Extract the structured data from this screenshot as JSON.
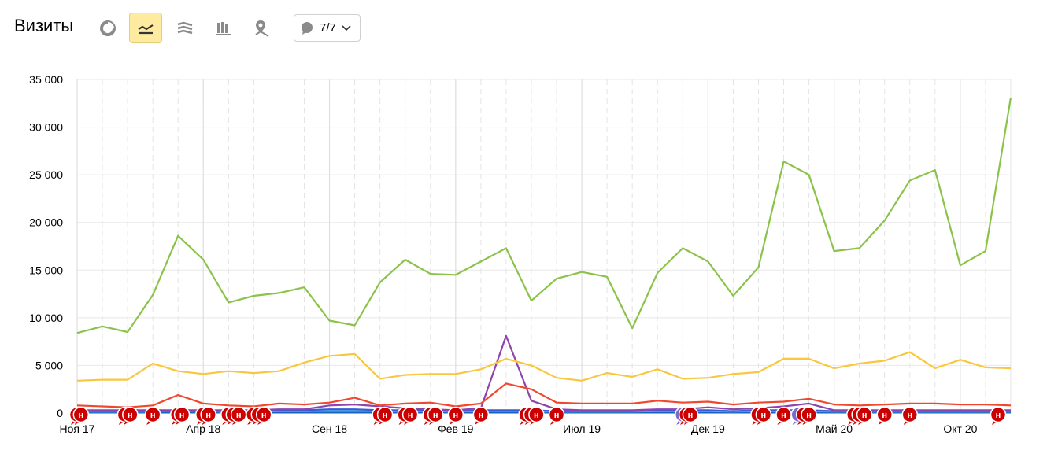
{
  "header": {
    "title": "Визиты",
    "segments_count": "7/7",
    "toolbar_icons": [
      "pie-chart-icon",
      "line-chart-icon",
      "stacked-area-icon",
      "column-chart-icon",
      "map-pin-icon",
      "comment-icon"
    ],
    "active_icon": "line-chart-icon",
    "active_color": "#ffeba0"
  },
  "chart_data": {
    "type": "line",
    "x_tick_labels": [
      "Ноя 17",
      "Апр 18",
      "Сен 18",
      "Фев 19",
      "Июл 19",
      "Дек 19",
      "Май 20",
      "Окт 20"
    ],
    "y_tick_labels": [
      "0",
      "5 000",
      "10 000",
      "15 000",
      "20 000",
      "25 000",
      "30 000",
      "35 000"
    ],
    "ylim": [
      0,
      35000
    ],
    "grid": true,
    "periods": 38,
    "series": [
      {
        "color": "#8bc34a",
        "values": [
          8400,
          9100,
          8500,
          12400,
          18600,
          16100,
          11600,
          12300,
          12600,
          13200,
          9700,
          9200,
          13700,
          16100,
          14600,
          14500,
          15900,
          17300,
          11800,
          14100,
          14800,
          14300,
          8900,
          14700,
          17300,
          15900,
          12300,
          15300,
          26400,
          25000,
          17000,
          17300,
          20200,
          24400,
          25500,
          15500,
          17000,
          33100
        ]
      },
      {
        "color": "#f8c63f",
        "values": [
          3400,
          3500,
          3500,
          5200,
          4400,
          4100,
          4400,
          4200,
          4400,
          5300,
          6000,
          6200,
          3600,
          4000,
          4100,
          4100,
          4600,
          5700,
          5000,
          3700,
          3400,
          4200,
          3800,
          4600,
          3600,
          3700,
          4100,
          4300,
          5700,
          5700,
          4700,
          5200,
          5500,
          6400,
          4700,
          5600,
          4800,
          4700
        ]
      },
      {
        "color": "#f0482f",
        "values": [
          800,
          700,
          600,
          800,
          1900,
          1000,
          800,
          700,
          1000,
          900,
          1100,
          1600,
          800,
          1000,
          1100,
          700,
          1000,
          3100,
          2500,
          1100,
          1000,
          1000,
          1000,
          1300,
          1100,
          1200,
          900,
          1100,
          1200,
          1500,
          900,
          800,
          900,
          1000,
          1000,
          900,
          900,
          800
        ]
      },
      {
        "color": "#8e44ad",
        "values": [
          300,
          300,
          300,
          300,
          300,
          300,
          300,
          300,
          400,
          400,
          800,
          900,
          700,
          500,
          400,
          300,
          500,
          8100,
          1300,
          400,
          300,
          300,
          300,
          400,
          400,
          600,
          400,
          500,
          700,
          1000,
          300,
          300,
          300,
          300,
          300,
          300,
          300,
          300
        ]
      },
      {
        "color": "#3b5bd6",
        "values": [
          200,
          200,
          200,
          200,
          200,
          200,
          200,
          200,
          300,
          300,
          400,
          400,
          300,
          300,
          300,
          200,
          300,
          300,
          300,
          200,
          200,
          200,
          200,
          300,
          300,
          300,
          200,
          300,
          300,
          300,
          200,
          200,
          200,
          200,
          200,
          200,
          200,
          200
        ]
      },
      {
        "color": "#4aaee8",
        "values": [
          150,
          150,
          150,
          150,
          200,
          150,
          150,
          150,
          200,
          200,
          250,
          250,
          200,
          200,
          200,
          150,
          200,
          250,
          200,
          150,
          150,
          150,
          150,
          200,
          200,
          200,
          150,
          200,
          200,
          200,
          150,
          150,
          150,
          150,
          150,
          150,
          150,
          150
        ]
      },
      {
        "color": "#1565c0",
        "values": [
          50,
          50,
          50,
          50,
          50,
          50,
          50,
          50,
          50,
          50,
          50,
          50,
          50,
          50,
          50,
          50,
          50,
          50,
          50,
          50,
          50,
          50,
          50,
          50,
          50,
          50,
          50,
          50,
          50,
          50,
          50,
          50,
          50,
          50,
          50,
          50,
          50,
          50
        ]
      }
    ],
    "annotation_text": "н",
    "annotation_color": "#cc0000",
    "annotation_alt_color": "#7b68c8",
    "annotation_positions": [
      0,
      0.15,
      1.9,
      2.1,
      3,
      4,
      4.15,
      5,
      5.2,
      6,
      6.2,
      6.4,
      7,
      7.2,
      7.4,
      12,
      12.2,
      13,
      13.2,
      14,
      14.2,
      15,
      16,
      17.8,
      18,
      18.2,
      19,
      24,
      24.15,
      24.3,
      27,
      27.2,
      28,
      28.6,
      28.8,
      29,
      30.8,
      31,
      31.2,
      32,
      33,
      36.5
    ]
  }
}
